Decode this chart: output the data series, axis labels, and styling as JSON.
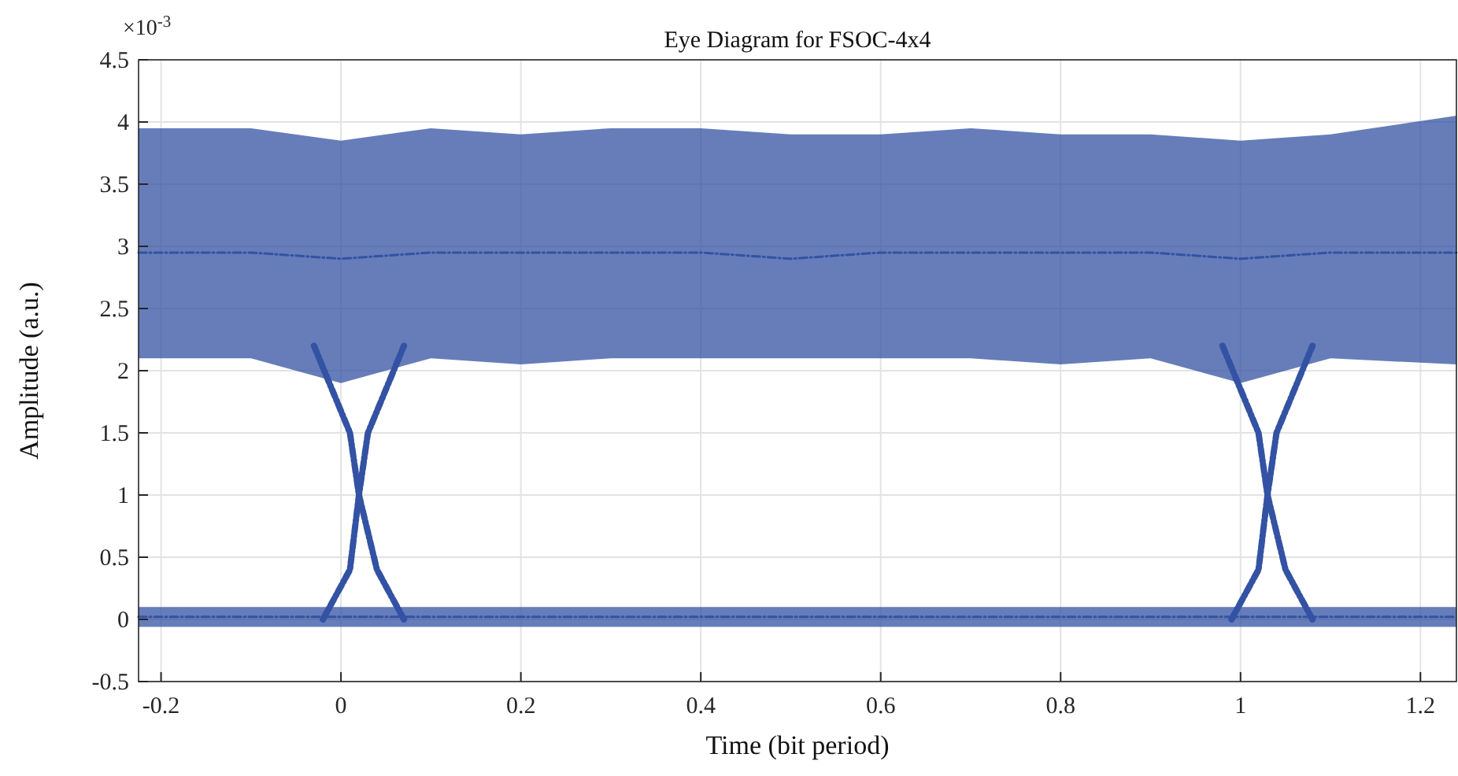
{
  "chart_data": {
    "type": "line",
    "title": "Eye Diagram for FSOC-4x4",
    "xlabel": "Time (bit period)",
    "ylabel": "Amplitude (a.u.)",
    "annotations": [
      "×10$^{-3}$"
    ],
    "xlim": [
      -0.225,
      1.24
    ],
    "ylim": [
      -0.5,
      4.5
    ],
    "xticks": [
      -0.2,
      0,
      0.2,
      0.4,
      0.6,
      0.8,
      1,
      1.2
    ],
    "yticks": [
      -0.5,
      0,
      0.5,
      1,
      1.5,
      2,
      2.5,
      3,
      3.5,
      4,
      4.5
    ],
    "grid": true,
    "line_style": "dashed",
    "marker": "none",
    "series": [
      {
        "color": "#3352a3",
        "x": [
          -0.225,
          -0.1,
          0,
          0.1,
          0.2,
          0.3,
          0.4,
          0.5,
          0.6,
          0.7,
          0.8,
          0.9,
          1,
          1.1,
          1.24
        ],
        "values": [
          2.95,
          2.95,
          2.9,
          2.95,
          2.95,
          2.95,
          2.95,
          2.9,
          2.95,
          2.95,
          2.95,
          2.95,
          2.9,
          2.95,
          2.95
        ],
        "lower": [
          2.1,
          2.1,
          1.9,
          2.1,
          2.05,
          2.1,
          2.1,
          2.1,
          2.1,
          2.1,
          2.05,
          2.1,
          1.9,
          2.1,
          2.05
        ],
        "upper": [
          3.95,
          3.95,
          3.85,
          3.95,
          3.9,
          3.95,
          3.95,
          3.9,
          3.9,
          3.95,
          3.9,
          3.9,
          3.85,
          3.9,
          4.05
        ]
      },
      {
        "color": "#3352a3",
        "x": [
          -0.225,
          0,
          0.2,
          0.4,
          0.6,
          0.8,
          1,
          1.24
        ],
        "values": [
          0.02,
          0.02,
          0.02,
          0.02,
          0.02,
          0.02,
          0.02,
          0.02
        ],
        "lower": [
          -0.06,
          -0.06,
          -0.06,
          -0.06,
          -0.06,
          -0.06,
          -0.06,
          -0.06
        ],
        "upper": [
          0.1,
          0.1,
          0.1,
          0.1,
          0.1,
          0.1,
          0.1,
          0.1
        ]
      },
      {
        "color": "#3352a3",
        "x": [
          -0.03,
          0.01,
          0.02,
          0.04,
          0.07
        ],
        "values": [
          2.2,
          1.5,
          1,
          0.4,
          0
        ]
      },
      {
        "color": "#3352a3",
        "x": [
          -0.02,
          0.01,
          0.02,
          0.03,
          0.07
        ],
        "values": [
          0,
          0.4,
          1,
          1.5,
          2.2
        ]
      },
      {
        "color": "#3352a3",
        "x": [
          0.98,
          1.02,
          1.03,
          1.05,
          1.08
        ],
        "values": [
          2.2,
          1.5,
          1,
          0.4,
          0
        ]
      },
      {
        "color": "#3352a3",
        "x": [
          0.99,
          1.02,
          1.03,
          1.04,
          1.08
        ],
        "values": [
          0,
          0.4,
          1,
          1.5,
          2.2
        ]
      }
    ]
  }
}
